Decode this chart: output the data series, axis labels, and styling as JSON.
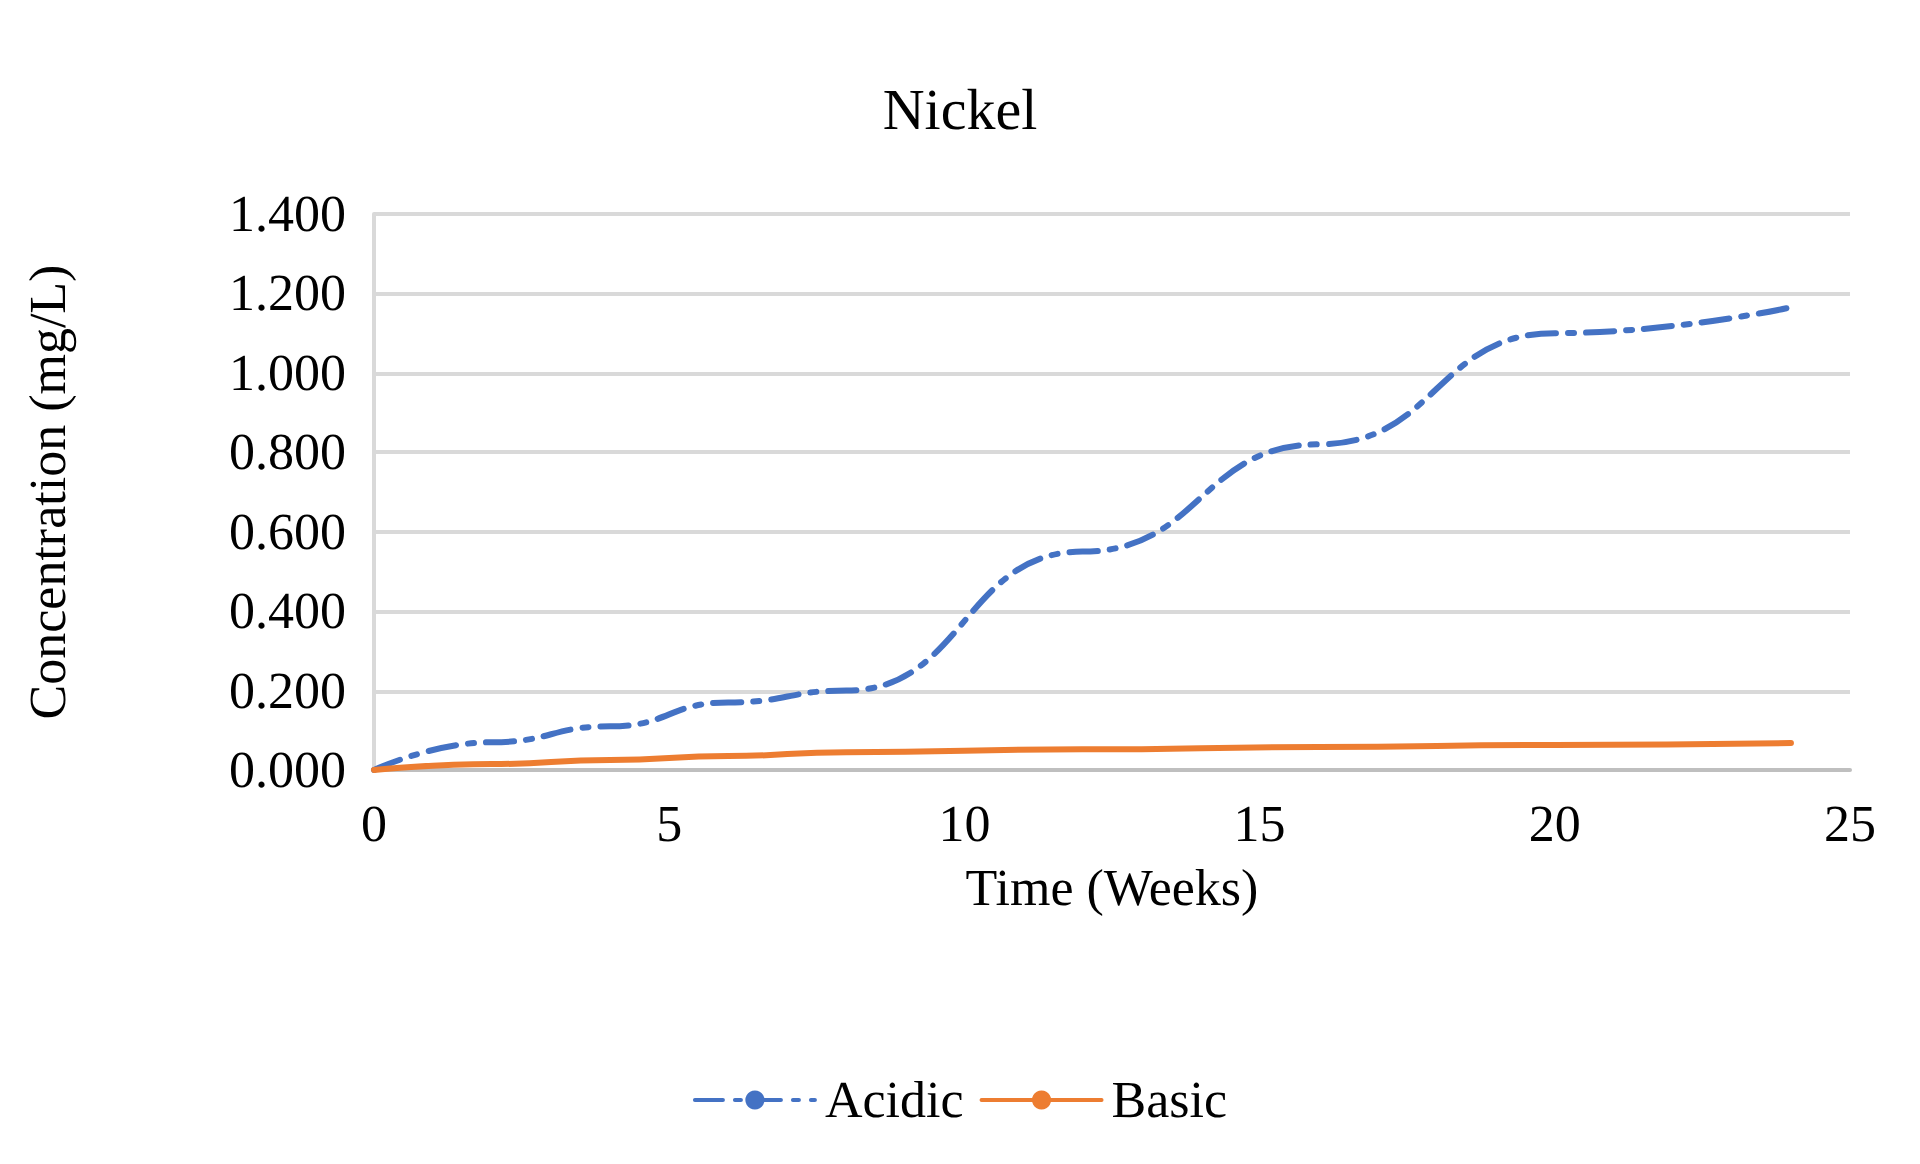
{
  "chart_data": {
    "type": "line",
    "title": "Nickel",
    "xlabel": "Time (Weeks)",
    "ylabel": "Concentration (mg/L)",
    "xlim": [
      0,
      25
    ],
    "xticks": [
      0,
      5,
      10,
      15,
      20,
      25
    ],
    "ylim": [
      0,
      1.4
    ],
    "yticks": [
      {
        "value": 0,
        "label": "0.000"
      },
      {
        "value": 0.2,
        "label": "0.200"
      },
      {
        "value": 0.4,
        "label": "0.400"
      },
      {
        "value": 0.6,
        "label": "0.600"
      },
      {
        "value": 0.8,
        "label": "0.800"
      },
      {
        "value": 1.0,
        "label": "1.000"
      },
      {
        "value": 1.2,
        "label": "1.200"
      },
      {
        "value": 1.4,
        "label": "1.400"
      }
    ],
    "grid": "y",
    "legend": "bottom",
    "marker": "none",
    "series": [
      {
        "name": "Acidic",
        "color": "#4472c4",
        "line_style": "dashed",
        "x": [
          0,
          2,
          4,
          6,
          8,
          12,
          16,
          20,
          24
        ],
        "values": [
          0,
          0.07,
          0.11,
          0.17,
          0.2,
          0.55,
          0.82,
          1.1,
          1.165
        ]
      },
      {
        "name": "Basic",
        "color": "#ed7d31",
        "line_style": "solid",
        "x": [
          0,
          2,
          4,
          6,
          8,
          12,
          16,
          20,
          24
        ],
        "values": [
          0,
          0.015,
          0.025,
          0.035,
          0.045,
          0.052,
          0.058,
          0.063,
          0.068
        ]
      }
    ]
  }
}
